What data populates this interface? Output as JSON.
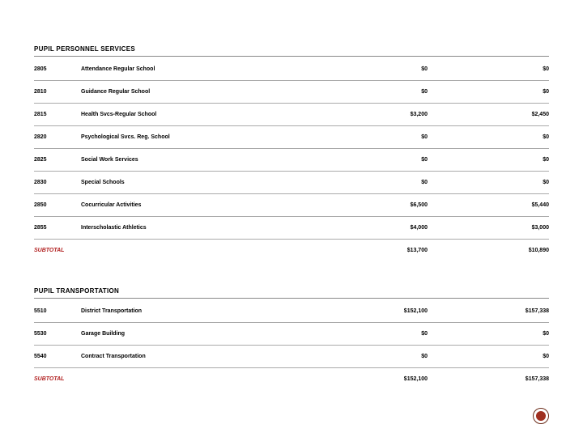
{
  "sections": [
    {
      "title": "PUPIL PERSONNEL SERVICES",
      "rows": [
        {
          "code": "2805",
          "desc": "Attendance Regular School",
          "amt1": "$0",
          "amt2": "$0"
        },
        {
          "code": "2810",
          "desc": "Guidance Regular School",
          "amt1": "$0",
          "amt2": "$0"
        },
        {
          "code": "2815",
          "desc": "Health Svcs-Regular School",
          "amt1": "$3,200",
          "amt2": "$2,450"
        },
        {
          "code": "2820",
          "desc": "Psychological Svcs. Reg. School",
          "amt1": "$0",
          "amt2": "$0"
        },
        {
          "code": "2825",
          "desc": "Social Work Services",
          "amt1": "$0",
          "amt2": "$0"
        },
        {
          "code": "2830",
          "desc": "Special Schools",
          "amt1": "$0",
          "amt2": "$0"
        },
        {
          "code": "2850",
          "desc": "Cocurricular Activities",
          "amt1": "$6,500",
          "amt2": "$5,440"
        },
        {
          "code": "2855",
          "desc": "Interscholastic Athletics",
          "amt1": "$4,000",
          "amt2": "$3,000"
        }
      ],
      "subtotal": {
        "label": "SUBTOTAL",
        "amt1": "$13,700",
        "amt2": "$10,890"
      }
    },
    {
      "title": "PUPIL TRANSPORTATION",
      "rows": [
        {
          "code": "5510",
          "desc": "District Transportation",
          "amt1": "$152,100",
          "amt2": "$157,338"
        },
        {
          "code": "5530",
          "desc": "Garage Building",
          "amt1": "$0",
          "amt2": "$0"
        },
        {
          "code": "5540",
          "desc": "Contract Transportation",
          "amt1": "$0",
          "amt2": "$0"
        }
      ],
      "subtotal": {
        "label": "SUBTOTAL",
        "amt1": "$152,100",
        "amt2": "$157,338"
      }
    }
  ],
  "colors": {
    "subtotal": "#b22222",
    "seal_border": "#6b2c1a",
    "seal_fill": "#a03020"
  }
}
